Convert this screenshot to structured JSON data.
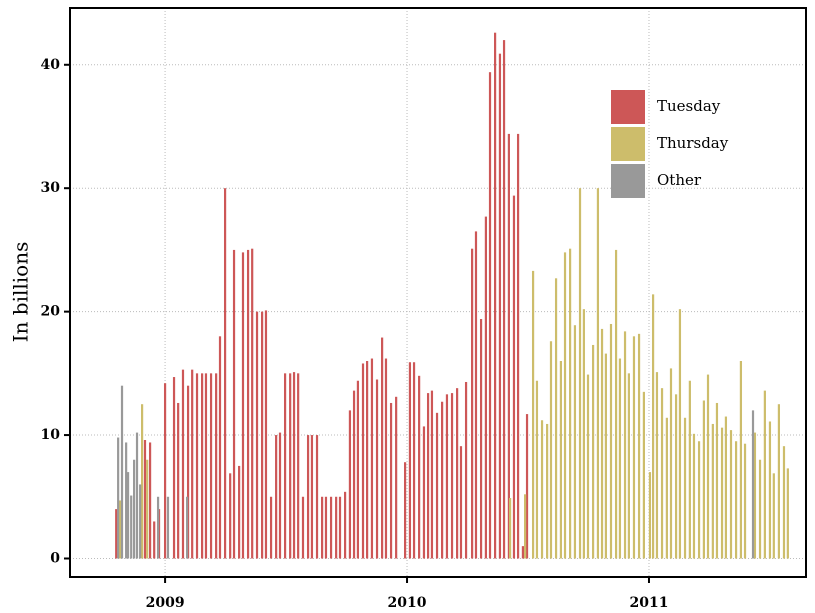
{
  "chart_data": {
    "type": "bar",
    "ylabel": "In billions",
    "xlim": [
      2008.607,
      2011.649
    ],
    "ylim": [
      -1.5,
      44.6
    ],
    "xticks": [
      2009,
      2010,
      2011
    ],
    "yticks": [
      0,
      10,
      20,
      30,
      40
    ],
    "grid": true,
    "legend": "upper right",
    "series": [
      {
        "name": "Tuesday",
        "color": "#cd5757",
        "x": [
          2008.798,
          2008.917,
          2008.938,
          2008.955,
          2008.975,
          2009.0,
          2009.037,
          2009.054,
          2009.074,
          2009.095,
          2009.112,
          2009.132,
          2009.153,
          2009.169,
          2009.19,
          2009.211,
          2009.227,
          2009.248,
          2009.269,
          2009.285,
          2009.306,
          2009.322,
          2009.343,
          2009.36,
          2009.38,
          2009.401,
          2009.417,
          2009.438,
          2009.459,
          2009.475,
          2009.496,
          2009.517,
          2009.533,
          2009.55,
          2009.57,
          2009.591,
          2009.607,
          2009.628,
          2009.649,
          2009.665,
          2009.686,
          2009.707,
          2009.723,
          2009.744,
          2009.764,
          2009.781,
          2009.797,
          2009.818,
          2009.835,
          2009.855,
          2009.876,
          2009.897,
          2009.913,
          2009.934,
          2009.955,
          2009.992,
          2010.012,
          2010.029,
          2010.05,
          2010.07,
          2010.087,
          2010.103,
          2010.124,
          2010.145,
          2010.165,
          2010.186,
          2010.207,
          2010.223,
          2010.244,
          2010.269,
          2010.285,
          2010.306,
          2010.326,
          2010.343,
          2010.364,
          2010.384,
          2010.401,
          2010.421,
          2010.442,
          2010.459,
          2010.479,
          2010.496
        ],
        "values": [
          4,
          9.6,
          9.4,
          3,
          4,
          14.2,
          14.7,
          12.6,
          15.3,
          14,
          15.3,
          15,
          15,
          15,
          15,
          15,
          18,
          30,
          6.9,
          25,
          7.5,
          24.8,
          25,
          25.1,
          20,
          20,
          20.1,
          5,
          10,
          10.2,
          15,
          15,
          15.1,
          15,
          5,
          10,
          10,
          10,
          5,
          5,
          5,
          5,
          5,
          5.4,
          12,
          13.6,
          14.4,
          15.8,
          16,
          16.2,
          14.5,
          17.9,
          16.2,
          12.6,
          13.1,
          7.8,
          15.9,
          15.9,
          14.8,
          10.7,
          13.4,
          13.6,
          11.8,
          12.7,
          13.3,
          13.4,
          13.8,
          9.1,
          14.3,
          25.1,
          26.5,
          19.4,
          27.7,
          39.4,
          42.6,
          40.9,
          42,
          34.4,
          29.4,
          34.4,
          1,
          11.7
        ]
      },
      {
        "name": "Thursday",
        "color": "#cdbd6b",
        "x": [
          2008.814,
          2008.905,
          2008.926,
          2010.426,
          2010.488,
          2010.521,
          2010.537,
          2010.558,
          2010.579,
          2010.595,
          2010.616,
          2010.636,
          2010.653,
          2010.674,
          2010.694,
          2010.715,
          2010.731,
          2010.748,
          2010.769,
          2010.789,
          2010.806,
          2010.822,
          2010.843,
          2010.864,
          2010.88,
          2010.901,
          2010.917,
          2010.938,
          2010.959,
          2010.979,
          2011.004,
          2011.017,
          2011.033,
          2011.054,
          2011.074,
          2011.091,
          2011.112,
          2011.128,
          2011.149,
          2011.169,
          2011.186,
          2011.207,
          2011.227,
          2011.244,
          2011.264,
          2011.281,
          2011.302,
          2011.318,
          2011.339,
          2011.36,
          2011.38,
          2011.397,
          2011.438,
          2011.459,
          2011.479,
          2011.5,
          2011.516,
          2011.537,
          2011.558,
          2011.574
        ],
        "values": [
          4.7,
          12.5,
          8,
          4.9,
          5.2,
          23.3,
          14.4,
          11.2,
          10.9,
          17.6,
          22.7,
          16,
          24.8,
          25.1,
          18.9,
          30,
          20.2,
          14.9,
          17.3,
          30,
          18.6,
          16.6,
          19,
          25,
          16.2,
          18.4,
          15,
          18,
          18.2,
          13.5,
          7,
          21.4,
          15.1,
          13.8,
          11.4,
          15.4,
          13.3,
          20.2,
          11.4,
          14.4,
          10.1,
          9.5,
          12.8,
          14.9,
          10.9,
          12.6,
          10.6,
          11.5,
          10.4,
          9.5,
          16,
          9.3,
          10.2,
          8,
          13.6,
          11.1,
          6.9,
          12.5,
          9.1,
          7.3
        ]
      },
      {
        "name": "Other",
        "color": "#999999",
        "x": [
          2008.806,
          2008.822,
          2008.839,
          2008.847,
          2008.86,
          2008.872,
          2008.884,
          2008.897,
          2008.971,
          2009.012,
          2009.091,
          2011.43
        ],
        "values": [
          9.8,
          14,
          9.4,
          7,
          5.1,
          8,
          10.2,
          6,
          5,
          5,
          5,
          12
        ]
      }
    ]
  }
}
